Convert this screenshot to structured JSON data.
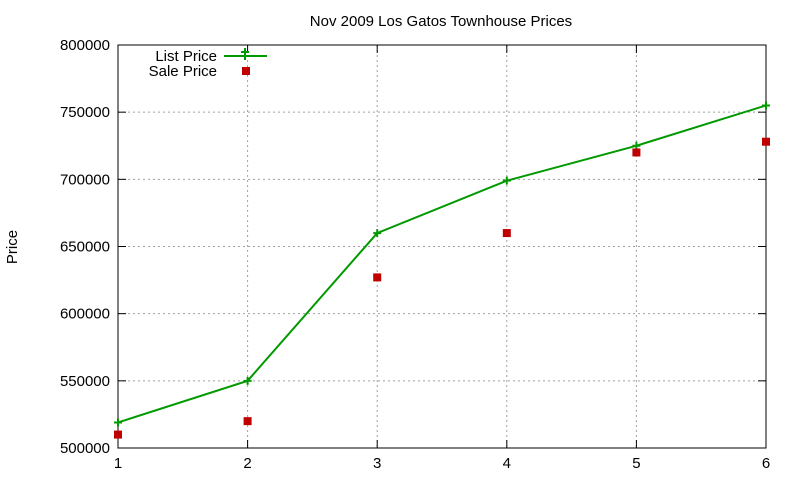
{
  "chart_data": {
    "type": "line",
    "title": "Nov 2009 Los Gatos Townhouse Prices",
    "xlabel": "",
    "ylabel": "Price",
    "x": [
      1,
      2,
      3,
      4,
      5,
      6
    ],
    "xlim": [
      1,
      6
    ],
    "ylim": [
      500000,
      800000
    ],
    "xticks": [
      "1",
      "2",
      "3",
      "4",
      "5",
      "6"
    ],
    "yticks": [
      "500000",
      "550000",
      "600000",
      "650000",
      "700000",
      "750000",
      "800000"
    ],
    "grid": true,
    "legend_position": "top-left",
    "series": [
      {
        "name": "List Price",
        "style": "linespoints",
        "marker": "plus",
        "color": "#009900",
        "values": [
          519000,
          550000,
          660000,
          699000,
          725000,
          755000
        ]
      },
      {
        "name": "Sale Price",
        "style": "points",
        "marker": "square",
        "color": "#c00000",
        "values": [
          510000,
          520000,
          627000,
          660000,
          720000,
          728000
        ]
      }
    ]
  }
}
